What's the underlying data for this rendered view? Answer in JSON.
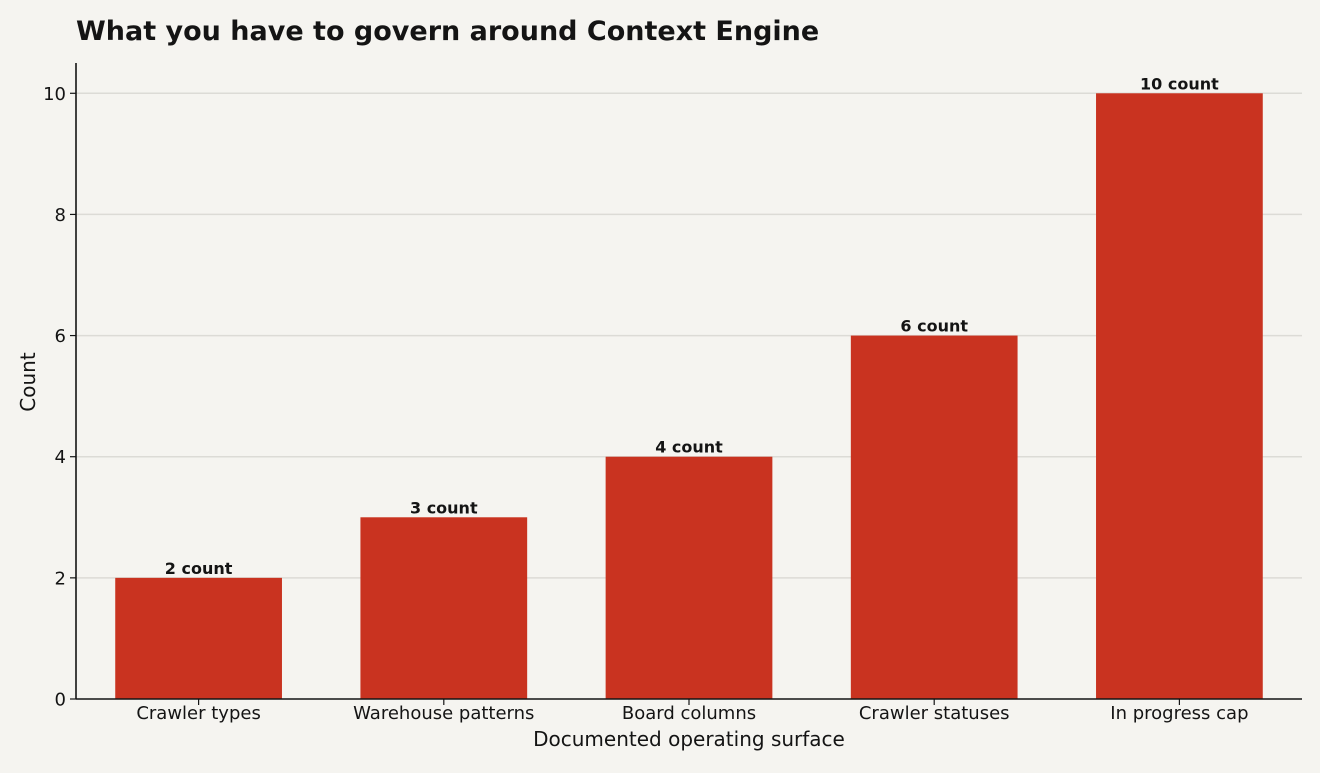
{
  "chart_data": {
    "type": "bar",
    "title": "What you have to govern around Context Engine",
    "xlabel": "Documented operating surface",
    "ylabel": "Count",
    "categories": [
      "Crawler types",
      "Warehouse patterns",
      "Board columns",
      "Crawler statuses",
      "In progress cap"
    ],
    "values": [
      2,
      3,
      4,
      6,
      10
    ],
    "data_labels": [
      "2 count",
      "3 count",
      "4 count",
      "6 count",
      "10 count"
    ],
    "ylim": [
      0,
      10.5
    ],
    "yticks": [
      0,
      2,
      4,
      6,
      8,
      10
    ],
    "ytick_labels": [
      "0",
      "2",
      "4",
      "6",
      "8",
      "10"
    ],
    "grid": "horizontal",
    "legend": "none",
    "colors": {
      "bar": "#c93320",
      "background": "#f5f4f0",
      "grid": "#dcdbd6",
      "text": "#141414"
    }
  }
}
